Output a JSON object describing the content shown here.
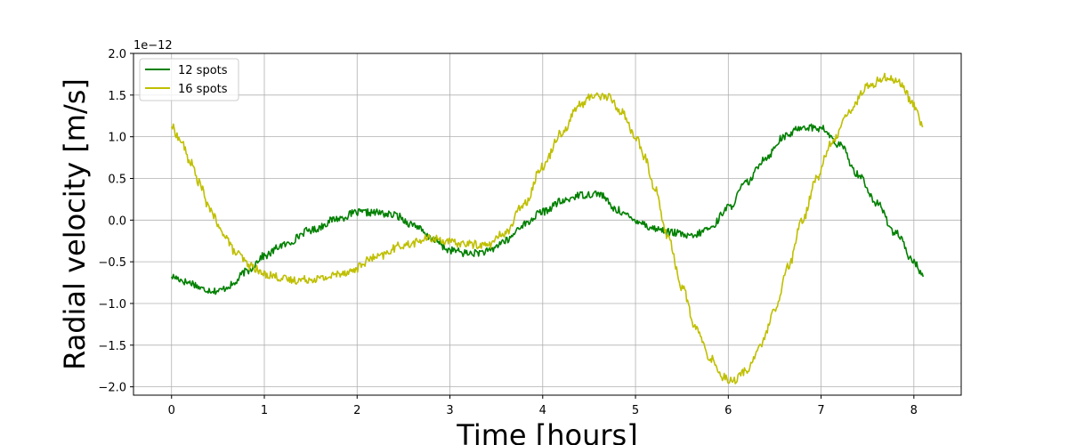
{
  "chart_data": {
    "type": "line",
    "title": "",
    "xlabel": "Time [hours]",
    "ylabel": "Radial velocity [m/s]",
    "y_offset_label": "1e−12",
    "xlim": [
      -0.41,
      8.51
    ],
    "ylim": [
      -2.1,
      2.0
    ],
    "xticks": [
      0,
      1,
      2,
      3,
      4,
      5,
      6,
      7,
      8
    ],
    "xtick_labels": [
      "0",
      "1",
      "2",
      "3",
      "4",
      "5",
      "6",
      "7",
      "8"
    ],
    "yticks": [
      -2.0,
      -1.5,
      -1.0,
      -0.5,
      0.0,
      0.5,
      1.0,
      1.5,
      2.0
    ],
    "ytick_labels": [
      "−2.0",
      "−1.5",
      "−1.0",
      "−0.5",
      "0.0",
      "0.5",
      "1.0",
      "1.5",
      "2.0"
    ],
    "grid": true,
    "legend": "top-left",
    "series": [
      {
        "name": "12 spots",
        "color": "#008000",
        "noise": 0.045,
        "x": [
          0,
          0.2,
          0.35,
          0.5,
          0.65,
          0.8,
          1.0,
          1.2,
          1.5,
          1.8,
          2.0,
          2.2,
          2.4,
          2.6,
          2.8,
          3.0,
          3.2,
          3.4,
          3.6,
          3.8,
          4.0,
          4.2,
          4.4,
          4.6,
          4.8,
          5.0,
          5.2,
          5.4,
          5.6,
          5.8,
          6.0,
          6.2,
          6.4,
          6.6,
          6.8,
          7.0,
          7.2,
          7.4,
          7.6,
          7.8,
          8.0,
          8.1
        ],
        "y": [
          -0.68,
          -0.75,
          -0.83,
          -0.85,
          -0.78,
          -0.62,
          -0.43,
          -0.3,
          -0.12,
          0.02,
          0.09,
          0.09,
          0.06,
          -0.05,
          -0.22,
          -0.36,
          -0.4,
          -0.38,
          -0.25,
          -0.05,
          0.1,
          0.22,
          0.3,
          0.32,
          0.12,
          0.0,
          -0.1,
          -0.15,
          -0.2,
          -0.1,
          0.15,
          0.45,
          0.75,
          1.0,
          1.12,
          1.1,
          0.9,
          0.55,
          0.2,
          -0.15,
          -0.5,
          -0.68
        ]
      },
      {
        "name": "16 spots",
        "color": "#bfbf00",
        "noise": 0.05,
        "x": [
          0,
          0.1,
          0.2,
          0.3,
          0.4,
          0.55,
          0.7,
          0.85,
          1.0,
          1.3,
          1.6,
          1.9,
          2.2,
          2.5,
          2.8,
          3.1,
          3.4,
          3.6,
          3.8,
          4.0,
          4.2,
          4.4,
          4.55,
          4.7,
          4.85,
          5.0,
          5.1,
          5.2,
          5.35,
          5.5,
          5.65,
          5.8,
          5.95,
          6.05,
          6.2,
          6.35,
          6.5,
          6.65,
          6.8,
          6.95,
          7.1,
          7.3,
          7.5,
          7.7,
          7.85,
          8.0,
          8.1
        ],
        "y": [
          1.12,
          0.95,
          0.7,
          0.45,
          0.15,
          -0.15,
          -0.4,
          -0.55,
          -0.65,
          -0.72,
          -0.7,
          -0.62,
          -0.45,
          -0.3,
          -0.22,
          -0.28,
          -0.3,
          -0.15,
          0.2,
          0.65,
          1.05,
          1.38,
          1.5,
          1.48,
          1.3,
          1.0,
          0.75,
          0.4,
          -0.2,
          -0.8,
          -1.3,
          -1.65,
          -1.88,
          -1.93,
          -1.8,
          -1.5,
          -1.1,
          -0.55,
          0.0,
          0.5,
          0.9,
          1.3,
          1.6,
          1.72,
          1.65,
          1.38,
          1.12
        ]
      }
    ]
  }
}
